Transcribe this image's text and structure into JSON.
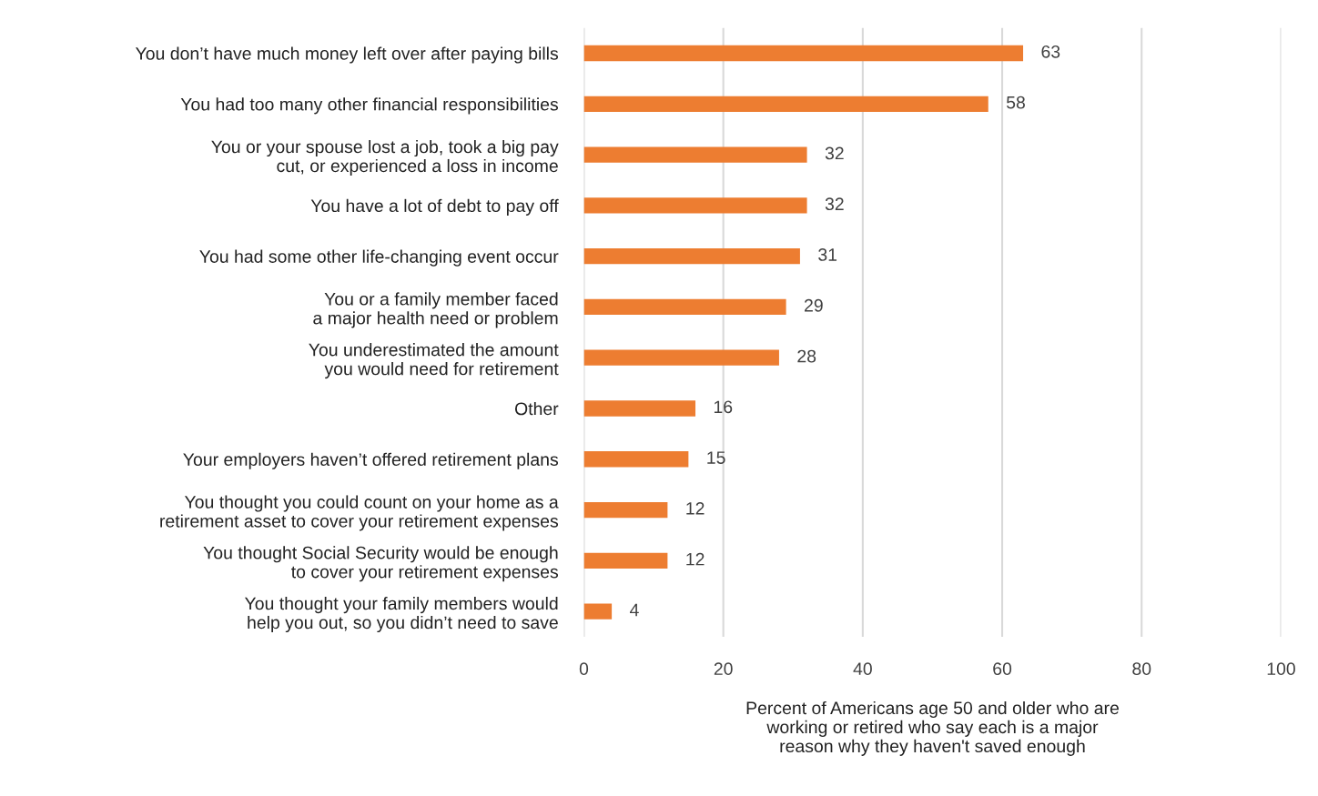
{
  "chart_data": {
    "type": "bar",
    "orientation": "horizontal",
    "categories": [
      "You don’t have much money left over after paying bills",
      "You had too many other financial responsibilities",
      "You or your spouse lost a job, took a big pay\ncut, or experienced a loss in income",
      "You have a lot of debt to pay off",
      "You had some other life-changing event occur",
      "You or a family member faced\na major health need or problem",
      "You underestimated the amount\nyou would need for retirement",
      "Other",
      "Your employers haven’t offered retirement plans",
      "You thought you could count on your home as a\nretirement asset to cover your retirement expenses",
      "You thought Social Security would be enough\nto cover your retirement expenses",
      "You thought your family members would\nhelp you out, so you didn’t need to save"
    ],
    "values": [
      63,
      58,
      32,
      32,
      31,
      29,
      28,
      16,
      15,
      12,
      12,
      4
    ],
    "color": "#ed7d31",
    "xlim": [
      0,
      100
    ],
    "xticks": [
      0,
      20,
      40,
      60,
      80,
      100
    ],
    "xlabel": "Percent of Americans age 50 and older who are\nworking or retired who say each is a major\nreason why they haven't saved enough",
    "grid": "x",
    "data_labels": true,
    "legend": false
  }
}
